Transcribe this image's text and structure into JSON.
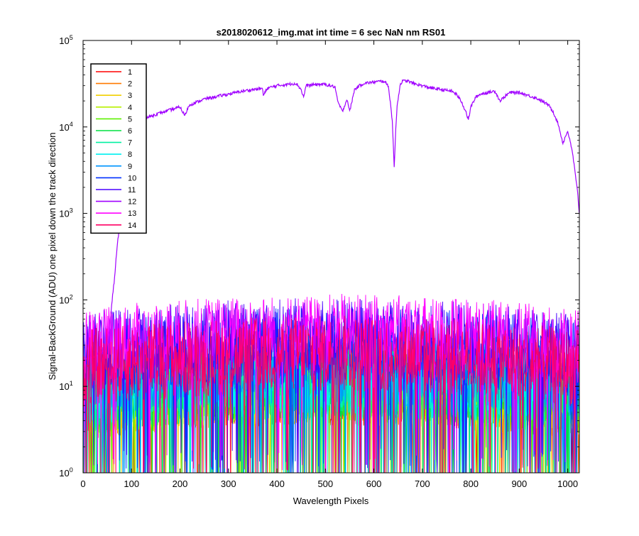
{
  "chart_data": {
    "type": "line",
    "title": "s2018020612_img.mat int time = 6 sec  NaN nm RS01",
    "xlabel": "Wavelength Pixels",
    "ylabel": "Signal-BackGround (ADU) one pixel down the track direction",
    "xlim": [
      0,
      1024
    ],
    "ylim": [
      1,
      100000
    ],
    "yscale": "log",
    "x_ticks": [
      0,
      100,
      200,
      300,
      400,
      500,
      600,
      700,
      800,
      900,
      1000
    ],
    "y_tick_labels": [
      {
        "base": "10",
        "exp": "0"
      },
      {
        "base": "10",
        "exp": "1"
      },
      {
        "base": "10",
        "exp": "2"
      },
      {
        "base": "10",
        "exp": "3"
      },
      {
        "base": "10",
        "exp": "4"
      },
      {
        "base": "10",
        "exp": "5"
      }
    ],
    "grid": false,
    "legend_position": "top-left",
    "series": [
      {
        "name": "1",
        "color": "#ff0000",
        "level": 10
      },
      {
        "name": "2",
        "color": "#ff7a00",
        "level": 10
      },
      {
        "name": "3",
        "color": "#f2d000",
        "level": 10
      },
      {
        "name": "4",
        "color": "#b8f000",
        "level": 11
      },
      {
        "name": "5",
        "color": "#5ef000",
        "level": 11
      },
      {
        "name": "6",
        "color": "#00e040",
        "level": 12
      },
      {
        "name": "7",
        "color": "#00f0a0",
        "level": 12
      },
      {
        "name": "8",
        "color": "#00f0f0",
        "level": 13
      },
      {
        "name": "9",
        "color": "#0095ff",
        "level": 18
      },
      {
        "name": "10",
        "color": "#0030ff",
        "level": 30
      },
      {
        "name": "11",
        "color": "#4a00ff",
        "level": 38
      },
      {
        "name": "12",
        "color": "#a000ff",
        "level": null,
        "profile": {
          "x": [
            0,
            20,
            40,
            50,
            55,
            60,
            65,
            70,
            75,
            80,
            90,
            100,
            120,
            150,
            200,
            210,
            215,
            220,
            250,
            300,
            330,
            350,
            370,
            372,
            380,
            400,
            440,
            450,
            455,
            460,
            480,
            500,
            520,
            525,
            535,
            540,
            545,
            550,
            560,
            570,
            580,
            600,
            620,
            630,
            638,
            642,
            645,
            648,
            655,
            660,
            670,
            680,
            700,
            720,
            740,
            760,
            770,
            780,
            790,
            795,
            800,
            810,
            820,
            850,
            860,
            880,
            900,
            920,
            940,
            960,
            970,
            980,
            990,
            1000,
            1010,
            1015,
            1020,
            1024
          ],
          "y": [
            20,
            22,
            25,
            30,
            50,
            100,
            180,
            400,
            700,
            1500,
            4000,
            8000,
            12000,
            14000,
            17000,
            13500,
            16000,
            18000,
            21000,
            24000,
            26000,
            27000,
            28000,
            23000,
            28000,
            30000,
            32000,
            27000,
            22000,
            30000,
            31000,
            31000,
            29000,
            20000,
            15000,
            18000,
            21000,
            15000,
            27000,
            30000,
            32000,
            33000,
            34000,
            30000,
            12000,
            3300,
            9000,
            18000,
            32000,
            34000,
            34000,
            32000,
            30000,
            28000,
            27000,
            26000,
            24000,
            20000,
            15000,
            12000,
            17000,
            22000,
            24000,
            26000,
            20000,
            25000,
            25000,
            23000,
            21000,
            18000,
            15000,
            11000,
            6500,
            9000,
            5000,
            3000,
            1800,
            1000
          ]
        }
      },
      {
        "name": "13",
        "color": "#ff00ff",
        "level": 42
      },
      {
        "name": "14",
        "color": "#ff0064",
        "level": 24
      }
    ]
  }
}
